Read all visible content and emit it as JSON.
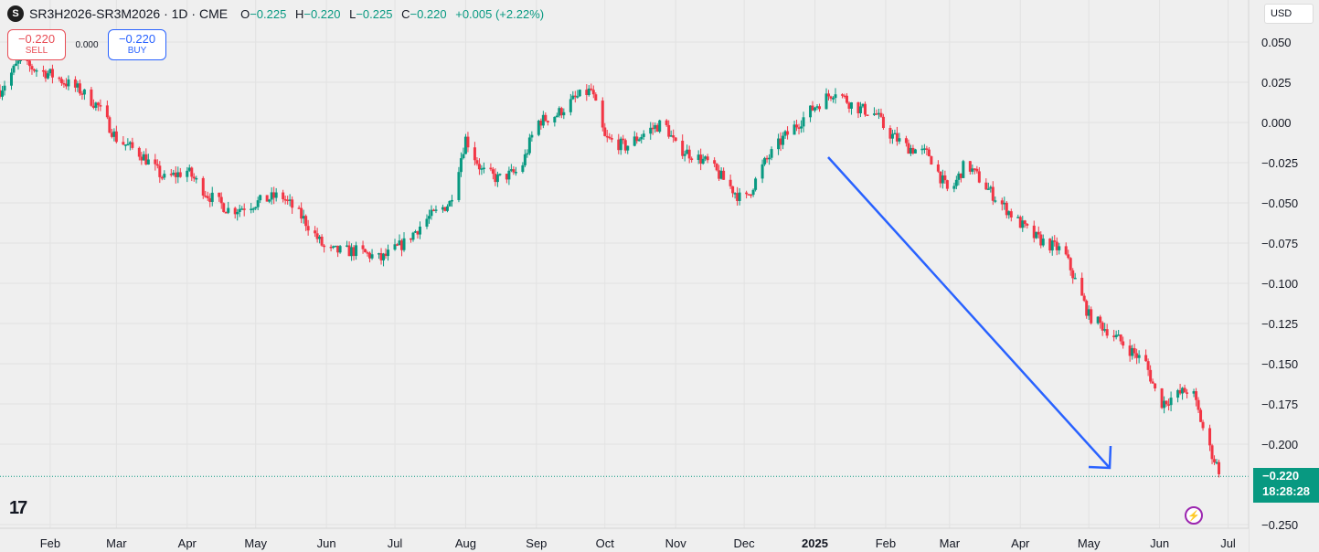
{
  "header": {
    "symbol": "SR3H2026-SR3M2026 · 1D · CME",
    "logo": "S",
    "o_label": "O",
    "o": "−0.225",
    "h_label": "H",
    "h": "−0.220",
    "l_label": "L",
    "l": "−0.225",
    "c_label": "C",
    "c": "−0.220",
    "change": "+0.005 (+2.22%)"
  },
  "trade": {
    "sell_price": "−0.220",
    "sell_label": "SELL",
    "spread": "0.000",
    "buy_price": "−0.220",
    "buy_label": "BUY"
  },
  "currency": "USD",
  "last_price": {
    "value": "−0.220",
    "countdown": "18:28:28"
  },
  "colors": {
    "up": "#089981",
    "down": "#f23645",
    "arrow": "#2962ff",
    "grid": "#e2e2e2",
    "last_line": "#089981"
  },
  "icons": {
    "brand": "tradingview-logo",
    "alert": "lightning-bolt-icon"
  },
  "brand_text": "17",
  "chart_data": {
    "type": "candlestick",
    "title": "SR3H2026-SR3M2026",
    "ylim": [
      -0.25,
      0.05
    ],
    "y_ticks": [
      "0.050",
      "0.025",
      "0.000",
      "−0.025",
      "−0.050",
      "−0.075",
      "−0.100",
      "−0.125",
      "−0.150",
      "−0.175",
      "−0.200",
      "−0.250"
    ],
    "y_tick_values": [
      0.05,
      0.025,
      0,
      -0.025,
      -0.05,
      -0.075,
      -0.1,
      -0.125,
      -0.15,
      -0.175,
      -0.2,
      -0.25
    ],
    "x_labels": [
      "Feb",
      "Mar",
      "Apr",
      "May",
      "Jun",
      "Jul",
      "Aug",
      "Sep",
      "Oct",
      "Nov",
      "Dec",
      "2025",
      "Feb",
      "Mar",
      "Apr",
      "May",
      "Jun",
      "Jul"
    ],
    "x_label_dates": [
      "2024-02-01",
      "2024-03-01",
      "2024-04-01",
      "2024-05-01",
      "2024-06-01",
      "2024-07-01",
      "2024-08-01",
      "2024-09-01",
      "2024-10-01",
      "2024-11-01",
      "2024-12-01",
      "2025-01-01",
      "2025-02-01",
      "2025-03-01",
      "2025-04-01",
      "2025-05-01",
      "2025-06-01",
      "2025-07-01"
    ],
    "x_range": [
      "2024-01-10",
      "2025-07-10"
    ],
    "last_value": -0.22,
    "grid": true,
    "close_path": [
      [
        "2024-01-10",
        0.02
      ],
      [
        "2024-01-18",
        0.037
      ],
      [
        "2024-02-01",
        0.03
      ],
      [
        "2024-02-14",
        0.02
      ],
      [
        "2024-02-22",
        0.01
      ],
      [
        "2024-03-01",
        -0.01
      ],
      [
        "2024-03-12",
        -0.02
      ],
      [
        "2024-03-22",
        -0.035
      ],
      [
        "2024-04-01",
        -0.03
      ],
      [
        "2024-04-10",
        -0.045
      ],
      [
        "2024-04-20",
        -0.055
      ],
      [
        "2024-05-01",
        -0.05
      ],
      [
        "2024-05-12",
        -0.045
      ],
      [
        "2024-05-22",
        -0.06
      ],
      [
        "2024-06-01",
        -0.08
      ],
      [
        "2024-06-15",
        -0.08
      ],
      [
        "2024-06-25",
        -0.085
      ],
      [
        "2024-07-05",
        -0.075
      ],
      [
        "2024-07-15",
        -0.06
      ],
      [
        "2024-07-25",
        -0.05
      ],
      [
        "2024-08-01",
        -0.01
      ],
      [
        "2024-08-08",
        -0.03
      ],
      [
        "2024-08-15",
        -0.035
      ],
      [
        "2024-08-25",
        -0.03
      ],
      [
        "2024-09-01",
        0.0
      ],
      [
        "2024-09-10",
        0.005
      ],
      [
        "2024-09-18",
        0.015
      ],
      [
        "2024-09-25",
        0.02
      ],
      [
        "2024-10-01",
        -0.01
      ],
      [
        "2024-10-10",
        -0.015
      ],
      [
        "2024-10-20",
        -0.005
      ],
      [
        "2024-10-27",
        0.0
      ],
      [
        "2024-11-01",
        -0.015
      ],
      [
        "2024-11-15",
        -0.025
      ],
      [
        "2024-11-25",
        -0.04
      ],
      [
        "2024-12-01",
        -0.05
      ],
      [
        "2024-12-10",
        -0.025
      ],
      [
        "2024-12-18",
        -0.01
      ],
      [
        "2025-01-01",
        0.01
      ],
      [
        "2025-01-10",
        0.02
      ],
      [
        "2025-01-18",
        0.01
      ],
      [
        "2025-01-28",
        0.005
      ],
      [
        "2025-02-01",
        -0.005
      ],
      [
        "2025-02-10",
        -0.015
      ],
      [
        "2025-02-20",
        -0.02
      ],
      [
        "2025-03-01",
        -0.045
      ],
      [
        "2025-03-08",
        -0.025
      ],
      [
        "2025-03-20",
        -0.045
      ],
      [
        "2025-03-30",
        -0.06
      ],
      [
        "2025-04-06",
        -0.07
      ],
      [
        "2025-04-12",
        -0.075
      ],
      [
        "2025-04-20",
        -0.08
      ],
      [
        "2025-05-01",
        -0.12
      ],
      [
        "2025-05-10",
        -0.13
      ],
      [
        "2025-05-18",
        -0.14
      ],
      [
        "2025-05-26",
        -0.15
      ],
      [
        "2025-06-01",
        -0.175
      ],
      [
        "2025-06-08",
        -0.17
      ],
      [
        "2025-06-15",
        -0.165
      ],
      [
        "2025-06-22",
        -0.2
      ],
      [
        "2025-06-29",
        -0.222
      ]
    ]
  }
}
